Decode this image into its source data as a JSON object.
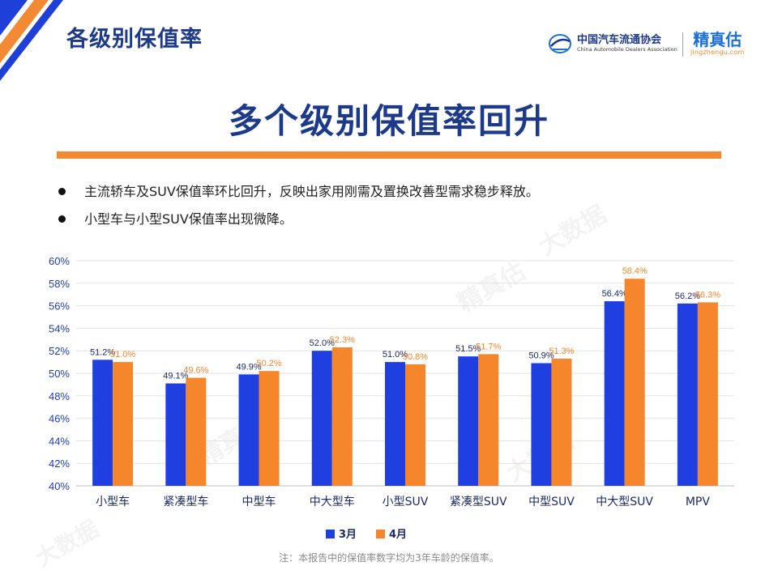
{
  "header": {
    "title": "各级别保值率"
  },
  "logos": {
    "cada_cn": "中国汽车流通协会",
    "cada_en": "China Automobile Dealers Association",
    "jzg_cn": "精真估",
    "jzg_en": "jingzhengu.com"
  },
  "main_title": "多个级别保值率回升",
  "bullets": [
    "主流轿车及SUV保值率环比回升，反映出家用刚需及置换改善型需求稳步释放。",
    "小型车与小型SUV保值率出现微降。"
  ],
  "footnote": "注：本报告中的保值率数字均为3年车龄的保值率。",
  "watermark": {
    "cn": "精真估",
    "big": "大数据",
    "url": "jingzhengu.com"
  },
  "colors": {
    "march": "#1f3fe0",
    "april": "#f5862c",
    "title": "#1d3a8a",
    "rule": "#f28a33",
    "grid": "#e3e3e3"
  },
  "chart_data": {
    "type": "bar",
    "categories": [
      "小型车",
      "紧凑型车",
      "中型车",
      "中大型车",
      "小型SUV",
      "紧凑型SUV",
      "中型SUV",
      "中大型SUV",
      "MPV"
    ],
    "series": [
      {
        "name": "3月",
        "values": [
          51.2,
          49.1,
          49.9,
          52.0,
          51.0,
          51.5,
          50.9,
          56.4,
          56.2
        ],
        "labels": [
          "51.2%",
          "49.1%",
          "49.9%",
          "52.0%",
          "51.0%",
          "51.5%",
          "50.9%",
          "56.4%",
          "56.2%"
        ]
      },
      {
        "name": "4月",
        "values": [
          51.0,
          49.6,
          50.2,
          52.3,
          50.8,
          51.7,
          51.3,
          58.4,
          56.3
        ],
        "labels": [
          "51.0%",
          "49.6%",
          "50.2%",
          "52.3%",
          "50.8%",
          "51.7%",
          "51.3%",
          "58.4%",
          "56.3%"
        ]
      }
    ],
    "ylim": [
      40,
      60
    ],
    "yticks": [
      40,
      42,
      44,
      46,
      48,
      50,
      52,
      54,
      56,
      58,
      60
    ],
    "ytick_labels": [
      "40%",
      "42%",
      "44%",
      "46%",
      "48%",
      "50%",
      "52%",
      "54%",
      "56%",
      "58%",
      "60%"
    ],
    "legend_position": "bottom-center",
    "grid": true
  }
}
